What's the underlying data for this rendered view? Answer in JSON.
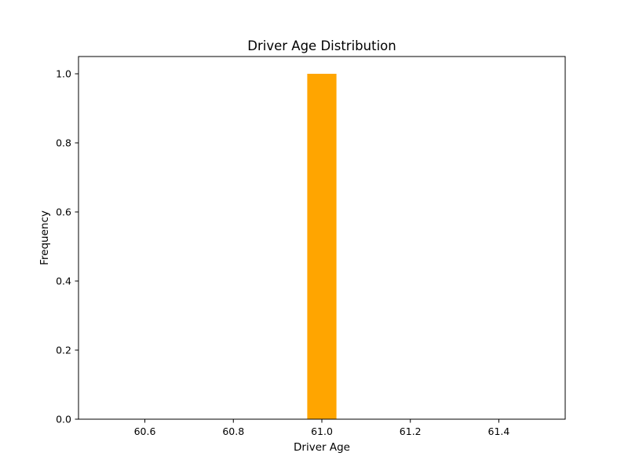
{
  "chart_data": {
    "type": "bar",
    "title": "Driver Age Distribution",
    "xlabel": "Driver Age",
    "ylabel": "Frequency",
    "xlim": [
      60.45,
      61.55
    ],
    "ylim": [
      0,
      1.05
    ],
    "xticks": [
      60.6,
      60.8,
      61.0,
      61.2,
      61.4
    ],
    "xtick_labels": [
      "60.6",
      "60.8",
      "61.0",
      "61.2",
      "61.4"
    ],
    "yticks": [
      0.0,
      0.2,
      0.4,
      0.6,
      0.8,
      1.0
    ],
    "ytick_labels": [
      "0.0",
      "0.2",
      "0.4",
      "0.6",
      "0.8",
      "1.0"
    ],
    "bins": [
      {
        "x0": 60.967,
        "x1": 61.033,
        "value": 1
      }
    ],
    "bar_color": "#ffa500",
    "grid": false,
    "legend": "none"
  }
}
